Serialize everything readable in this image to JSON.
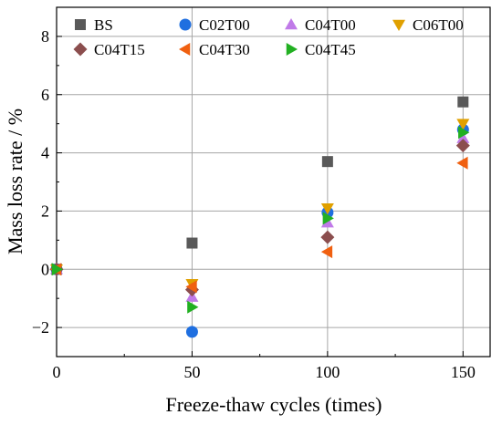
{
  "chart_data": {
    "type": "scatter",
    "title": "",
    "xlabel": "Freeze-thaw cycles (times)",
    "ylabel": "Mass loss rate / %",
    "xlim": [
      0,
      160
    ],
    "ylim": [
      -3,
      9
    ],
    "x_ticks": [
      0,
      50,
      100,
      150
    ],
    "x_tick_labels": [
      "0",
      "50",
      "100",
      "150"
    ],
    "y_ticks": [
      -2,
      0,
      2,
      4,
      6,
      8
    ],
    "y_tick_labels": [
      "−2",
      "0",
      "2",
      "4",
      "6",
      "8"
    ],
    "grid": true,
    "legend_position": "top",
    "series": [
      {
        "name": "BS",
        "marker": "square",
        "color": "#595959",
        "points": [
          [
            0,
            0
          ],
          [
            50,
            0.9
          ],
          [
            100,
            3.7
          ],
          [
            150,
            5.75
          ]
        ]
      },
      {
        "name": "C02T00",
        "marker": "circle",
        "color": "#1f6fe0",
        "points": [
          [
            0,
            0
          ],
          [
            50,
            -2.15
          ],
          [
            100,
            1.95
          ],
          [
            150,
            4.8
          ]
        ]
      },
      {
        "name": "C04T00",
        "marker": "triangle-up",
        "color": "#c07ae8",
        "points": [
          [
            0,
            0
          ],
          [
            50,
            -0.95
          ],
          [
            100,
            1.6
          ],
          [
            150,
            4.5
          ]
        ]
      },
      {
        "name": "C06T00",
        "marker": "triangle-down",
        "color": "#e0a000",
        "points": [
          [
            0,
            0
          ],
          [
            50,
            -0.5
          ],
          [
            100,
            2.1
          ],
          [
            150,
            5.0
          ]
        ]
      },
      {
        "name": "C04T15",
        "marker": "diamond",
        "color": "#8b4e4e",
        "points": [
          [
            0,
            0
          ],
          [
            50,
            -0.7
          ],
          [
            100,
            1.1
          ],
          [
            150,
            4.25
          ]
        ]
      },
      {
        "name": "C04T30",
        "marker": "triangle-left",
        "color": "#f06010",
        "points": [
          [
            0,
            0
          ],
          [
            50,
            -0.6
          ],
          [
            100,
            0.6
          ],
          [
            150,
            3.65
          ]
        ]
      },
      {
        "name": "C04T45",
        "marker": "triangle-right",
        "color": "#22b022",
        "points": [
          [
            0,
            0
          ],
          [
            50,
            -1.3
          ],
          [
            100,
            1.75
          ],
          [
            150,
            4.7
          ]
        ]
      }
    ]
  }
}
